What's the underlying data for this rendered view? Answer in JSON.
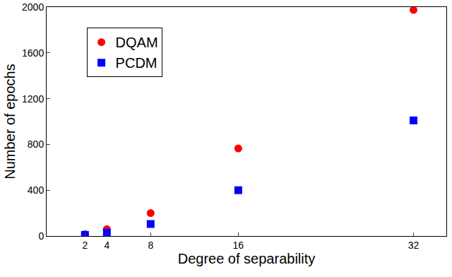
{
  "chart_data": {
    "type": "scatter",
    "x_label": "Degree of separability",
    "y_label": "Number of epochs",
    "x": [
      2,
      4,
      8,
      16,
      32
    ],
    "series": [
      {
        "name": "DQAM",
        "color": "#ff0000",
        "marker": "circle",
        "values": [
          15,
          60,
          200,
          765,
          1975
        ]
      },
      {
        "name": "PCDM",
        "color": "#0000ff",
        "marker": "square",
        "values": [
          10,
          30,
          105,
          400,
          1010
        ]
      }
    ],
    "xlim": [
      -1.5,
      35
    ],
    "xticks": [
      2,
      4,
      8,
      16,
      32
    ],
    "ylim": [
      0,
      2000
    ],
    "yticks": [
      0,
      400,
      800,
      1200,
      1600,
      2000
    ],
    "grid": false,
    "legend": "upper left"
  }
}
